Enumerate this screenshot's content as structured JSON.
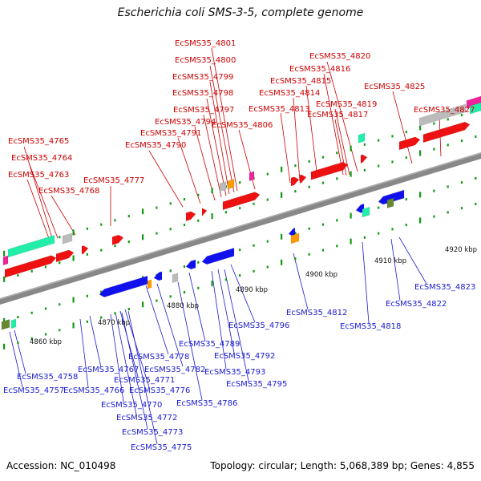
{
  "title": "Escherichia coli SMS-3-5, complete genome",
  "footer": {
    "accession": "Accession: NC_010498",
    "topology": "Topology: circular; Length: 5,068,389 bp; Genes: 4,855"
  },
  "colors": {
    "forward_gene": "#ee1111",
    "reverse_gene": "#1111ee",
    "rna_cyan": "#22eeaa",
    "rna_magenta": "#ee2299",
    "pseudo_grey": "#bbbbbb",
    "orange": "#ff9900",
    "olive": "#668833",
    "backbone": "#888888",
    "tick": "#119911"
  },
  "kbp_labels": [
    "4860 kbp",
    "4870 kbp",
    "4880 kbp",
    "4890 kbp",
    "4900 kbp",
    "4910 kbp",
    "4920 kbp"
  ],
  "top_labels": [
    "EcSMS35_4801",
    "EcSMS35_4800",
    "EcSMS35_4799",
    "EcSMS35_4798",
    "EcSMS35_4797",
    "EcSMS35_4794",
    "EcSMS35_4791",
    "EcSMS35_4790",
    "EcSMS35_4806",
    "EcSMS35_4765",
    "EcSMS35_4764",
    "EcSMS35_4763",
    "EcSMS35_4768",
    "EcSMS35_4777",
    "EcSMS35_4820",
    "EcSMS35_4816",
    "EcSMS35_4815",
    "EcSMS35_4814",
    "EcSMS35_4813",
    "EcSMS35_4819",
    "EcSMS35_4817",
    "EcSMS35_4825",
    "EcSMS35_4827"
  ],
  "bottom_labels": [
    "EcSMS35_4823",
    "EcSMS35_4822",
    "EcSMS35_4818",
    "EcSMS35_4812",
    "EcSMS35_4796",
    "EcSMS35_4789",
    "EcSMS35_4792",
    "EcSMS35_4793",
    "EcSMS35_4795",
    "EcSMS35_4778",
    "EcSMS35_4782",
    "EcSMS35_4786",
    "EcSMS35_4758",
    "EcSMS35_4757",
    "EcSMS35_4767",
    "EcSMS35_4766",
    "EcSMS35_4771",
    "EcSMS35_4776",
    "EcSMS35_4770",
    "EcSMS35_4772",
    "EcSMS35_4773",
    "EcSMS35_4775"
  ]
}
